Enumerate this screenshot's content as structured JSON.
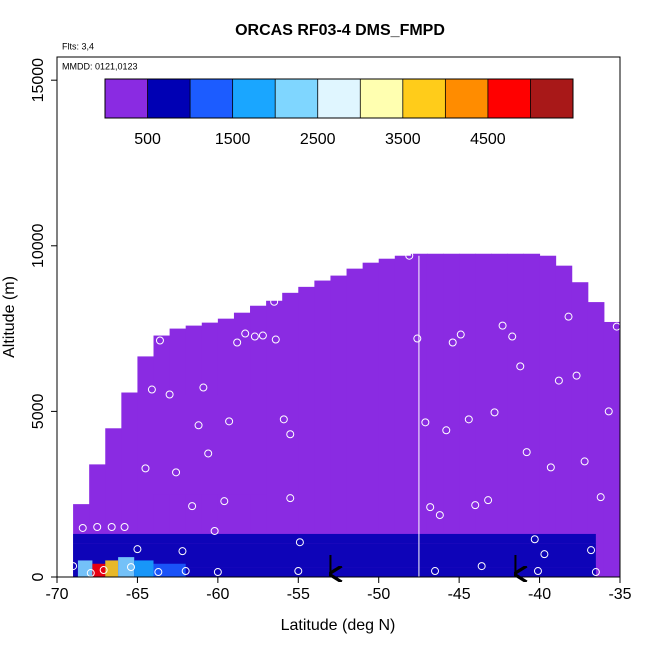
{
  "chart_data": {
    "type": "curtain",
    "title": "ORCAS RF03-4 DMS_FMPD",
    "notes": [
      "Flts: 3,4",
      "MMDD: 0121,0123"
    ],
    "xlabel": "Latitude (deg N)",
    "ylabel": "Altitude (m)",
    "xlim": [
      -70,
      -35
    ],
    "xticks": [
      -70,
      -65,
      -60,
      -55,
      -50,
      -45,
      -40,
      -35
    ],
    "ylim": [
      0,
      15700
    ],
    "yticks": [
      0,
      5000,
      10000,
      15000
    ],
    "colorbar": {
      "lim": [
        0,
        5500
      ],
      "ticks": [
        500,
        1500,
        2500,
        3500,
        4500
      ],
      "breaks": [
        0,
        500,
        1000,
        1500,
        2000,
        2500,
        3000,
        3500,
        4000,
        4500,
        5000,
        5500
      ],
      "colors": [
        "#8a2be2",
        "#0000b4",
        "#1c5cff",
        "#1aa6ff",
        "#7fd6ff",
        "#e0f6ff",
        "#ffffb0",
        "#ffcc1a",
        "#ff8c00",
        "#ff0000",
        "#a81818"
      ]
    },
    "field": {
      "value": 250,
      "lat_edges": [
        -69,
        -68,
        -67,
        -66,
        -65,
        -64,
        -63,
        -62,
        -61,
        -60,
        -59,
        -58,
        -57,
        -56,
        -55,
        -54,
        -53,
        -52,
        -51,
        -50,
        -49,
        -48,
        -47,
        -46,
        -45,
        -44,
        -43,
        -42,
        -41,
        -40,
        -39,
        -38,
        -37,
        -36,
        -35
      ],
      "tops": [
        2200,
        3400,
        4490,
        5570,
        6660,
        7290,
        7500,
        7590,
        7680,
        7800,
        7980,
        8190,
        8340,
        8580,
        8760,
        8950,
        9100,
        9310,
        9490,
        9610,
        9700,
        9760,
        9760,
        9760,
        9760,
        9760,
        9760,
        9760,
        9760,
        9700,
        9400,
        8900,
        8300,
        7700
      ]
    },
    "cells": [
      [
        -64,
        -57,
        2500,
        5500,
        150
      ],
      [
        -69,
        -36.5,
        1000,
        1300,
        900
      ],
      [
        -69,
        -36.5,
        300,
        1000,
        700
      ],
      [
        -69,
        -36.5,
        0,
        300,
        900
      ],
      [
        -68.7,
        -67.8,
        0,
        500,
        2200
      ],
      [
        -67.8,
        -67,
        0,
        400,
        4800
      ],
      [
        -67,
        -66.2,
        0,
        500,
        3600
      ],
      [
        -66.2,
        -65.2,
        0,
        600,
        2300
      ],
      [
        -65.2,
        -64,
        0,
        500,
        1800
      ],
      [
        -64,
        -62,
        0,
        400,
        1200
      ]
    ],
    "flight_break_lat": -47.5,
    "arrows_x": [
      -53,
      -41.5
    ],
    "points": {
      "color": "#ffffff",
      "x": [
        -68.4,
        -67.5,
        -66.6,
        -65.8,
        -65.0,
        -62.2,
        -60.2,
        -59.6,
        -61.6,
        -62.6,
        -64.5,
        -60.6,
        -61.2,
        -59.3,
        -60.9,
        -64.1,
        -63.0,
        -63.6,
        -58.8,
        -58.3,
        -57.7,
        -57.2,
        -56.4,
        -56.5,
        -55.9,
        -55.5,
        -55.5,
        -54.9,
        -48.1,
        -47.6,
        -47.1,
        -45.8,
        -45.4,
        -44.9,
        -44.4,
        -44.0,
        -46.2,
        -46.8,
        -43.2,
        -42.8,
        -42.3,
        -41.7,
        -41.2,
        -40.8,
        -40.3,
        -39.7,
        -39.3,
        -38.8,
        -38.2,
        -37.7,
        -37.2,
        -36.8,
        -36.2,
        -35.7,
        -35.2,
        -69.0,
        -67.9,
        -67.1,
        -65.4,
        -63.7,
        -62.0,
        -60.0,
        -55.0,
        -46.5,
        -43.6,
        -40.1,
        -36.5
      ],
      "y": [
        1480,
        1510,
        1510,
        1510,
        840,
        780,
        1390,
        2290,
        2140,
        3160,
        3280,
        3730,
        4580,
        4700,
        5720,
        5660,
        5510,
        7140,
        7080,
        7350,
        7260,
        7290,
        7170,
        8310,
        4760,
        4310,
        2380,
        1050,
        9700,
        7200,
        4670,
        4430,
        7080,
        7320,
        4760,
        2170,
        1870,
        2110,
        2320,
        4970,
        7590,
        7260,
        6360,
        3770,
        1140,
        690,
        3310,
        5930,
        7860,
        6080,
        3490,
        810,
        2410,
        5000,
        7560,
        330,
        120,
        210,
        300,
        150,
        180,
        150,
        180,
        180,
        330,
        180,
        150
      ]
    }
  }
}
